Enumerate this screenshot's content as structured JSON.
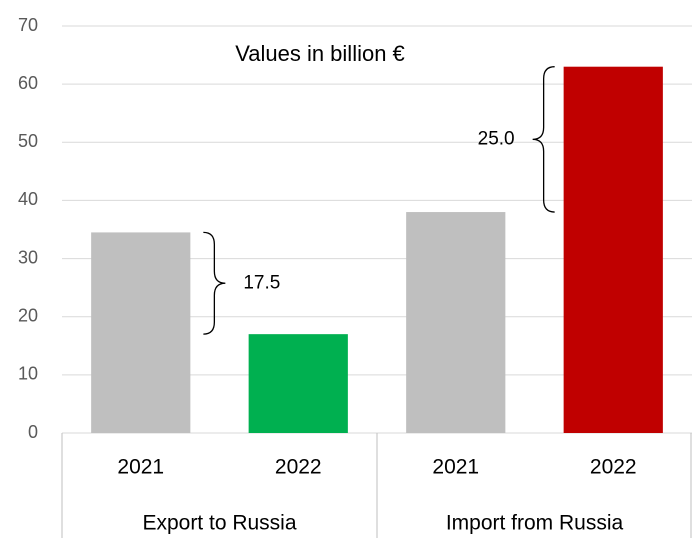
{
  "chart_data": {
    "type": "bar",
    "title": "Values in billion €",
    "categories": [
      "2021",
      "2022",
      "2021",
      "2022"
    ],
    "groups": [
      "Export to Russia",
      "Import from Russia"
    ],
    "values": [
      34.5,
      17.0,
      38.0,
      63.0
    ],
    "colors": [
      "#bfbfbf",
      "#00b050",
      "#bfbfbf",
      "#c00000"
    ],
    "annotations": [
      "17.5",
      "25.0"
    ],
    "ylim": [
      0,
      70
    ],
    "yticks": [
      0,
      10,
      20,
      30,
      40,
      50,
      60,
      70
    ],
    "grid": true
  }
}
